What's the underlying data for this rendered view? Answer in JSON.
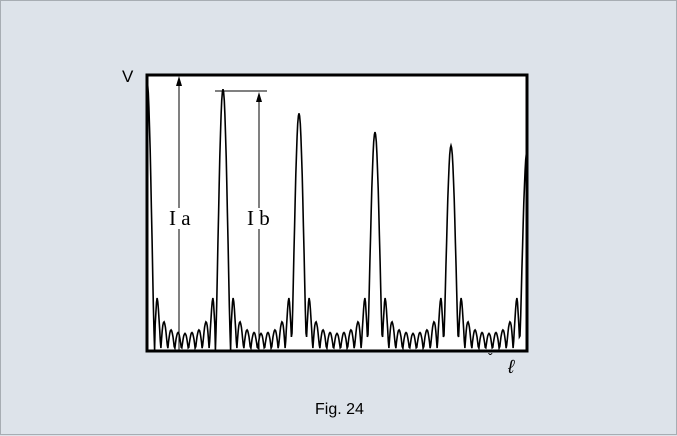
{
  "figure": {
    "y_axis_label": "V",
    "x_axis_label": "ℓ",
    "x_axis_mark": "ˇ",
    "dim_label_a": "I a",
    "dim_label_b": "I b",
    "caption": "Fig. 24"
  },
  "colors": {
    "page_background": "#dde3ea",
    "plot_background": "#ffffff",
    "line": "#000000"
  },
  "chart_data": {
    "type": "line",
    "description_note": "",
    "major_peak_heights": [
      1.0,
      0.97,
      0.88,
      0.81,
      0.76,
      0.74
    ],
    "major_peak_positions": [
      0,
      1,
      2,
      3,
      4,
      5
    ]
  }
}
